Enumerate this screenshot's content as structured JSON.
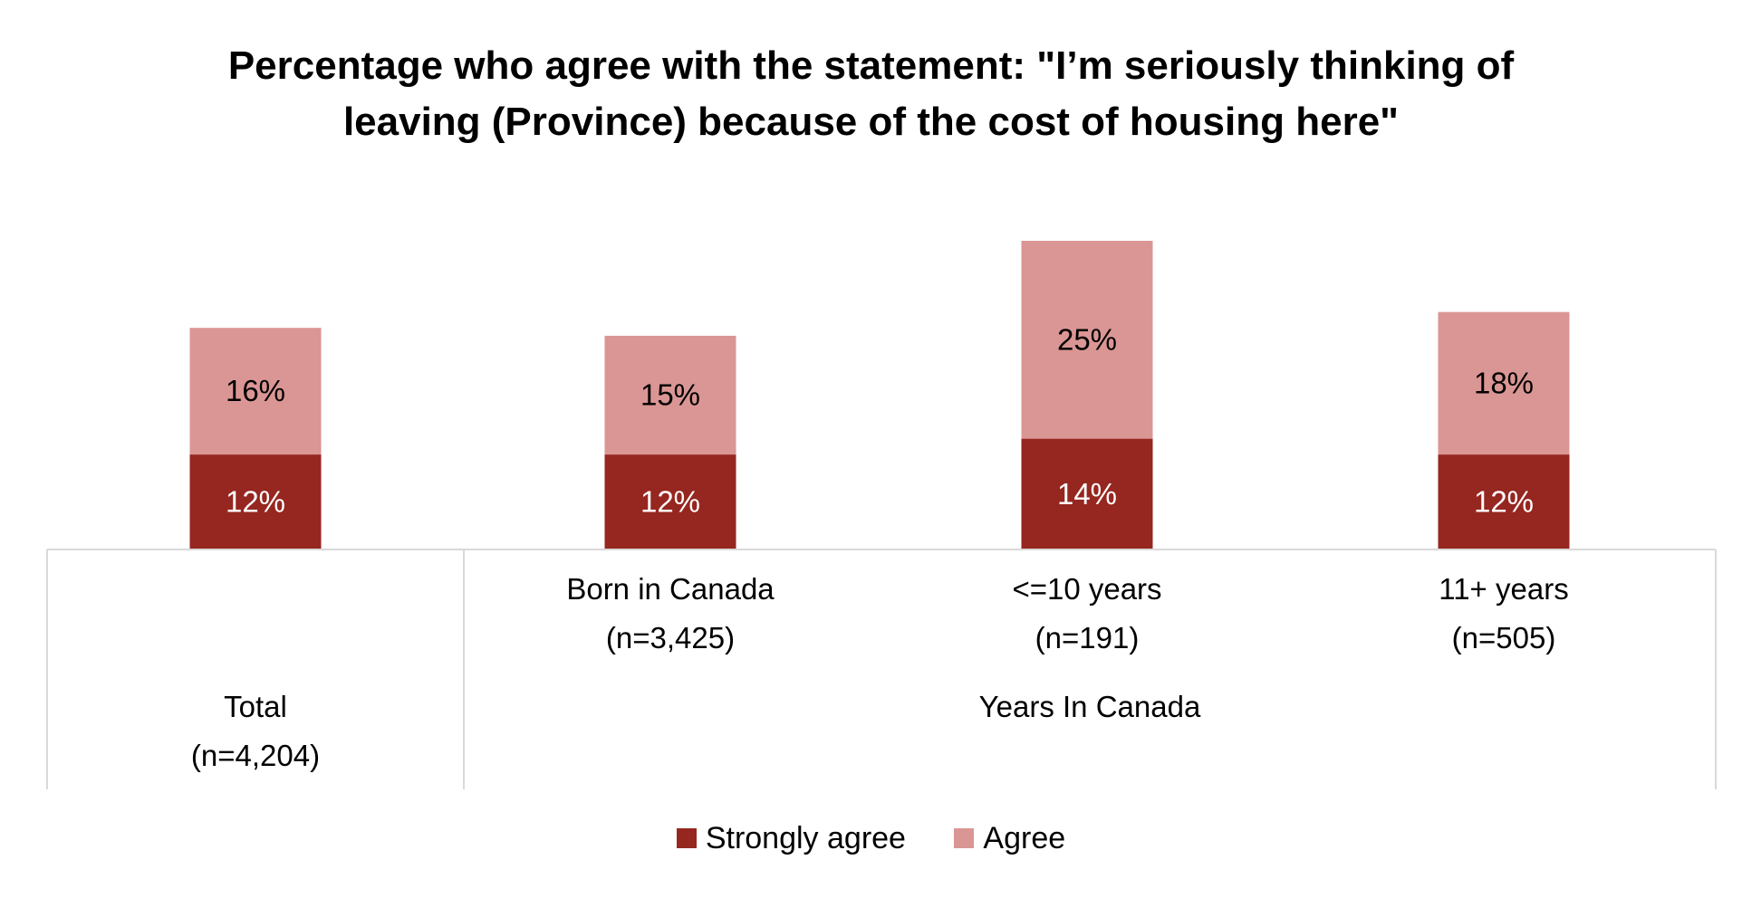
{
  "chart_data": {
    "type": "bar",
    "stacked": true,
    "title_lines": [
      "Percentage who agree with the statement: \"I’m seriously thinking of",
      "leaving (Province) because of the cost of housing here\""
    ],
    "categories": [
      "Total\n(n=4,204)",
      "Born in Canada\n(n=3,425)",
      "<=10 years\n(n=191)",
      "11+ years\n(n=505)"
    ],
    "category_lines": [
      [
        "Total",
        "(n=4,204)"
      ],
      [
        "Born in Canada",
        "(n=3,425)"
      ],
      [
        "<=10 years",
        "(n=191)"
      ],
      [
        "11+ years",
        "(n=505)"
      ]
    ],
    "group_label": "Years In Canada",
    "series": [
      {
        "name": "Strongly agree",
        "color": "#962620",
        "values": [
          12,
          12,
          14,
          12
        ],
        "labels": [
          "12%",
          "12%",
          "14%",
          "12%"
        ],
        "label_color": "#ffffff"
      },
      {
        "name": "Agree",
        "color": "#da9694",
        "values": [
          16,
          15,
          25,
          18
        ],
        "labels": [
          "16%",
          "15%",
          "25%",
          "18%"
        ],
        "label_color": "#000000"
      }
    ],
    "ylim": [
      0,
      40
    ],
    "legend_position": "bottom",
    "grid": false
  }
}
